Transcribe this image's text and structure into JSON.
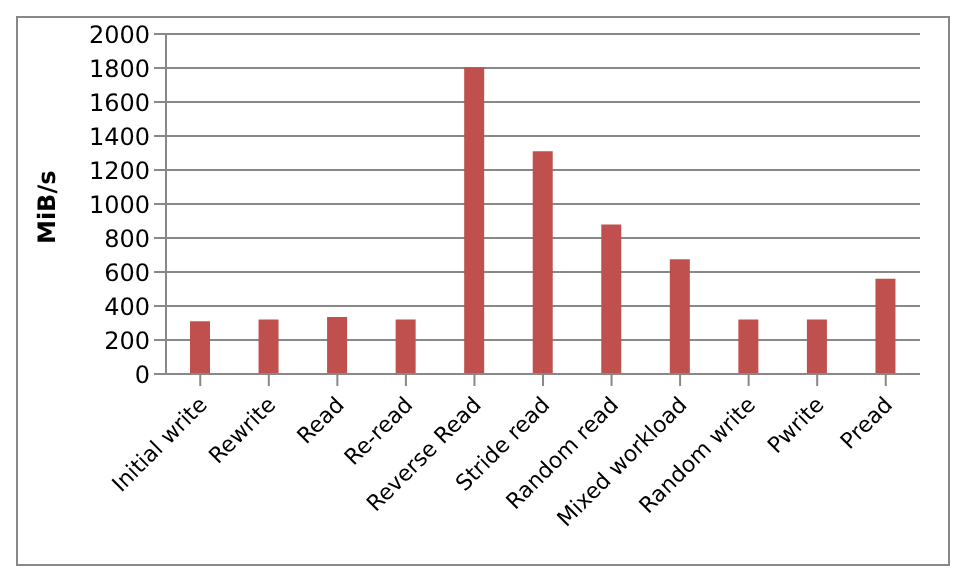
{
  "chart_data": {
    "type": "bar",
    "ylabel": "MiB/s",
    "categories": [
      "Initial write",
      "Rewrite",
      "Read",
      "Re-read",
      "Reverse Read",
      "Stride read",
      "Random read",
      "Mixed workload",
      "Random write",
      "Pwrite",
      "Pread"
    ],
    "values": [
      310,
      320,
      335,
      320,
      1805,
      1310,
      880,
      675,
      320,
      320,
      560
    ],
    "color": "#c0504d",
    "ylim": [
      0,
      2000
    ],
    "yticks": [
      0,
      200,
      400,
      600,
      800,
      1000,
      1200,
      1400,
      1600,
      1800,
      2000
    ],
    "grid": "y",
    "legend": false
  }
}
